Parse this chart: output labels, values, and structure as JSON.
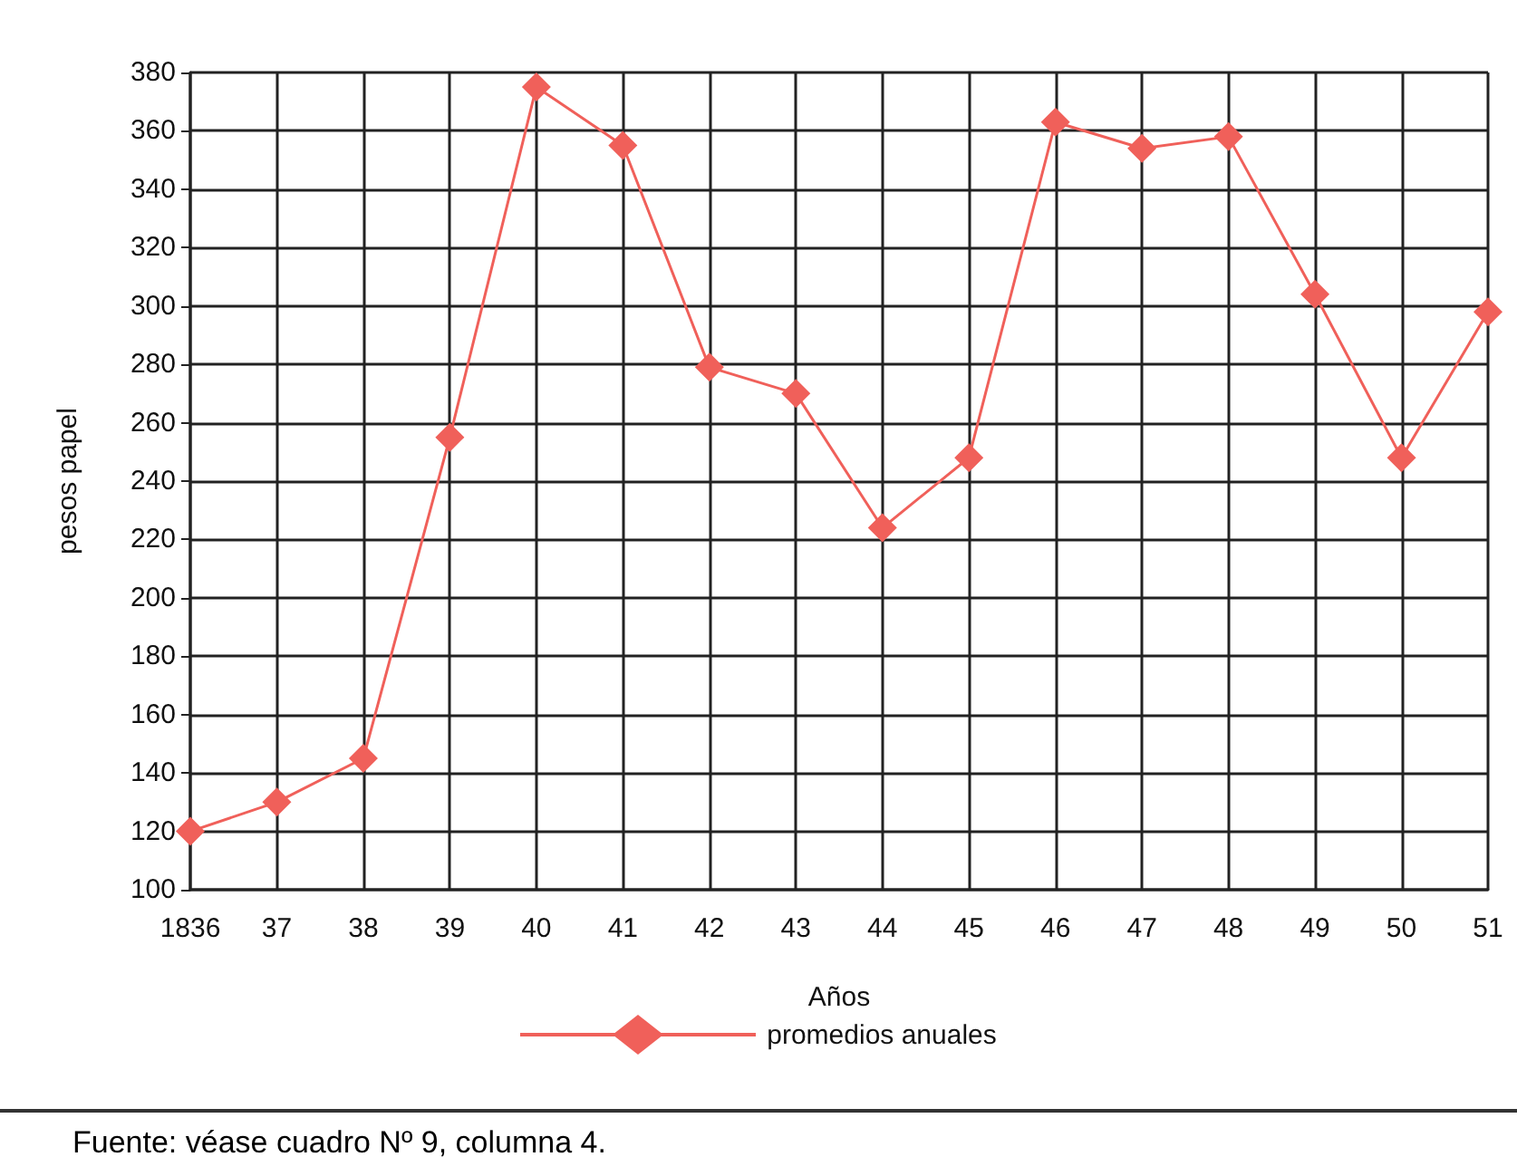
{
  "chart_data": {
    "type": "line",
    "xlabel": "Años",
    "ylabel": "pesos papel",
    "categories": [
      "1836",
      "37",
      "38",
      "39",
      "40",
      "41",
      "42",
      "43",
      "44",
      "45",
      "46",
      "47",
      "48",
      "49",
      "50",
      "51"
    ],
    "series": [
      {
        "name": "promedios anuales",
        "color": "#f0605a",
        "values": [
          120,
          130,
          145,
          255,
          375,
          355,
          279,
          270,
          224,
          248,
          363,
          354,
          358,
          304,
          248,
          298
        ]
      }
    ],
    "ylim": [
      100,
      380
    ],
    "yticks": [
      100,
      120,
      140,
      160,
      180,
      200,
      220,
      240,
      260,
      280,
      300,
      320,
      340,
      360,
      380
    ],
    "grid": true,
    "legend": "bottom",
    "marker": "diamond",
    "line_style": "solid",
    "annotations": [
      "Fuente: véase cuadro Nº 9, columna 4."
    ]
  }
}
